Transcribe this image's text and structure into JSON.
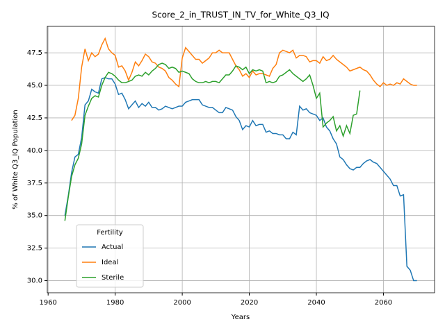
{
  "chart_data": {
    "type": "line",
    "title": "Score_2_in_TRUST_IN_TV_for_White_Q3_IQ",
    "x_label": "Years",
    "y_label": "% of White Q3_IQ Population",
    "legend_title": "Fertility",
    "legend": "lower left",
    "grid": true,
    "x": [
      1965,
      1966,
      1967,
      1968,
      1969,
      1970,
      1971,
      1972,
      1973,
      1974,
      1975,
      1976,
      1977,
      1978,
      1979,
      1980,
      1981,
      1982,
      1983,
      1984,
      1985,
      1986,
      1987,
      1988,
      1989,
      1990,
      1991,
      1992,
      1993,
      1994,
      1995,
      1996,
      1997,
      1998,
      1999,
      2000,
      2001,
      2002,
      2003,
      2004,
      2005,
      2006,
      2007,
      2008,
      2009,
      2010,
      2011,
      2012,
      2013,
      2014,
      2015,
      2016,
      2017,
      2018,
      2019,
      2020,
      2021,
      2022,
      2023,
      2024,
      2025,
      2026,
      2027,
      2028,
      2029,
      2030,
      2031,
      2032,
      2033,
      2034,
      2035,
      2036,
      2037,
      2038,
      2039,
      2040,
      2041,
      2042,
      2043,
      2044,
      2045,
      2046,
      2047,
      2048,
      2049,
      2050,
      2051,
      2052,
      2053,
      2054,
      2055,
      2056,
      2057,
      2058,
      2059,
      2060,
      2061,
      2062,
      2063,
      2064,
      2065,
      2066,
      2067,
      2068,
      2069,
      2070
    ],
    "series": [
      {
        "name": "Actual",
        "color": "#1f77b4",
        "values": [
          35.0,
          36.5,
          38.3,
          39.5,
          39.7,
          41.0,
          43.5,
          43.8,
          44.7,
          44.5,
          44.4,
          45.5,
          45.6,
          45.5,
          45.5,
          45.1,
          44.3,
          44.4,
          43.9,
          43.2,
          43.5,
          43.8,
          43.3,
          43.6,
          43.4,
          43.7,
          43.3,
          43.3,
          43.1,
          43.2,
          43.4,
          43.3,
          43.2,
          43.3,
          43.4,
          43.4,
          43.7,
          43.8,
          43.9,
          43.9,
          43.9,
          43.5,
          43.4,
          43.3,
          43.3,
          43.1,
          42.9,
          42.9,
          43.3,
          43.2,
          43.1,
          42.6,
          42.3,
          41.6,
          41.9,
          41.8,
          42.3,
          41.9,
          42.0,
          42.0,
          41.4,
          41.5,
          41.3,
          41.3,
          41.2,
          41.2,
          40.9,
          40.9,
          41.4,
          41.2,
          43.4,
          43.1,
          43.2,
          42.9,
          42.8,
          42.7,
          42.3,
          42.5,
          41.8,
          41.5,
          40.9,
          40.5,
          39.5,
          39.3,
          38.9,
          38.6,
          38.5,
          38.7,
          38.7,
          39.0,
          39.2,
          39.3,
          39.1,
          39.0,
          38.7,
          38.4,
          38.1,
          37.8,
          37.3,
          37.3,
          36.5,
          36.6,
          31.1,
          30.8,
          30.0,
          30.0
        ]
      },
      {
        "name": "Ideal",
        "color": "#ff7f0e",
        "values": [
          null,
          null,
          42.3,
          42.7,
          44.0,
          46.4,
          47.8,
          46.9,
          47.5,
          47.2,
          47.4,
          48.1,
          48.6,
          47.8,
          47.5,
          47.3,
          46.4,
          46.5,
          46.1,
          45.4,
          46.0,
          46.8,
          46.5,
          46.9,
          47.4,
          47.2,
          46.8,
          46.7,
          46.4,
          46.3,
          46.1,
          45.6,
          45.4,
          45.1,
          44.9,
          47.1,
          47.9,
          47.6,
          47.3,
          47.0,
          47.0,
          46.7,
          46.9,
          47.1,
          47.5,
          47.5,
          47.7,
          47.5,
          47.5,
          47.5,
          47.0,
          46.5,
          46.2,
          45.7,
          45.9,
          45.6,
          46.1,
          45.8,
          45.9,
          45.9,
          45.8,
          45.7,
          46.3,
          46.6,
          47.5,
          47.7,
          47.6,
          47.5,
          47.7,
          47.1,
          47.3,
          47.3,
          47.2,
          46.8,
          46.9,
          46.9,
          46.7,
          47.2,
          46.9,
          47.0,
          47.3,
          47.0,
          46.8,
          46.6,
          46.4,
          46.1,
          46.2,
          46.3,
          46.4,
          46.2,
          46.1,
          45.8,
          45.4,
          45.1,
          44.9,
          45.2,
          45.0,
          45.1,
          45.0,
          45.2,
          45.1,
          45.5,
          45.3,
          45.1,
          45.0,
          45.0
        ]
      },
      {
        "name": "Sterile",
        "color": "#2ca02c",
        "values": [
          34.6,
          36.4,
          38.0,
          38.9,
          39.4,
          40.5,
          42.7,
          43.4,
          44.0,
          44.2,
          44.1,
          45.0,
          45.6,
          46.0,
          45.9,
          45.7,
          45.4,
          45.2,
          45.2,
          45.3,
          45.4,
          45.7,
          45.8,
          45.7,
          46.0,
          45.8,
          46.1,
          46.3,
          46.6,
          46.7,
          46.6,
          46.3,
          46.4,
          46.3,
          46.0,
          46.1,
          46.0,
          45.9,
          45.5,
          45.3,
          45.2,
          45.2,
          45.3,
          45.2,
          45.3,
          45.3,
          45.2,
          45.5,
          45.8,
          45.8,
          46.1,
          46.5,
          46.4,
          46.2,
          46.4,
          45.9,
          46.2,
          46.1,
          46.2,
          46.1,
          45.2,
          45.3,
          45.2,
          45.3,
          45.7,
          45.8,
          46.0,
          46.2,
          45.9,
          45.7,
          45.5,
          45.3,
          45.5,
          45.8,
          45.0,
          44.0,
          44.4,
          41.8,
          42.1,
          42.3,
          42.6,
          41.5,
          41.9,
          41.1,
          41.9,
          41.3,
          42.7,
          42.8,
          44.6,
          null,
          null,
          null,
          null,
          null,
          null,
          null,
          null,
          null,
          null,
          null,
          null,
          null,
          null,
          null,
          null,
          null
        ]
      }
    ],
    "xlim": [
      1959.75,
      2075.25
    ],
    "xticks": [
      1960,
      1980,
      2000,
      2020,
      2040,
      2060
    ],
    "ylim": [
      29.07,
      49.53
    ],
    "yticks": [
      {
        "value": 30,
        "label": "30.0"
      },
      32.5,
      {
        "value": 35,
        "label": "35.0"
      },
      37.5,
      {
        "value": 40,
        "label": "40.0"
      },
      42.5,
      {
        "value": 45,
        "label": "45.0"
      },
      47.5
    ]
  }
}
